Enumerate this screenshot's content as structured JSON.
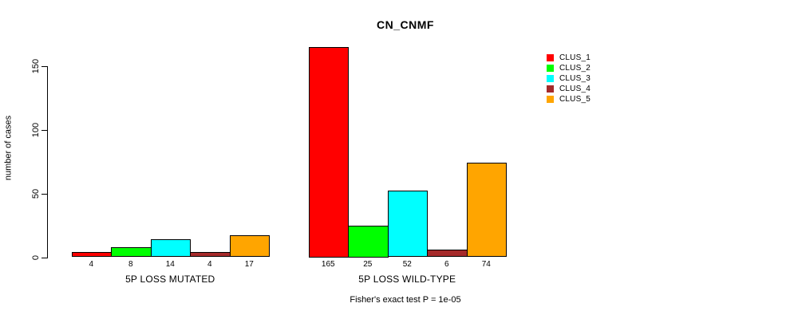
{
  "chart_data": {
    "type": "bar",
    "title": "CN_CNMF",
    "ylabel": "number of cases",
    "xlabel": "",
    "yticks": [
      0,
      50,
      100,
      150
    ],
    "ylim": [
      0,
      170
    ],
    "grid": false,
    "legend_position": "top-right",
    "bar_value_labels": true,
    "categories": [
      "5P LOSS MUTATED",
      "5P LOSS WILD-TYPE"
    ],
    "series": [
      {
        "name": "CLUS_1",
        "color": "#FF0000",
        "values": [
          4,
          165
        ]
      },
      {
        "name": "CLUS_2",
        "color": "#00FF00",
        "values": [
          8,
          25
        ]
      },
      {
        "name": "CLUS_3",
        "color": "#00FFFF",
        "values": [
          14,
          52
        ]
      },
      {
        "name": "CLUS_4",
        "color": "#A52A2A",
        "values": [
          4,
          6
        ]
      },
      {
        "name": "CLUS_5",
        "color": "#FFA500",
        "values": [
          17,
          74
        ]
      }
    ],
    "annotation": "Fisher's exact test P = 1e-05"
  }
}
